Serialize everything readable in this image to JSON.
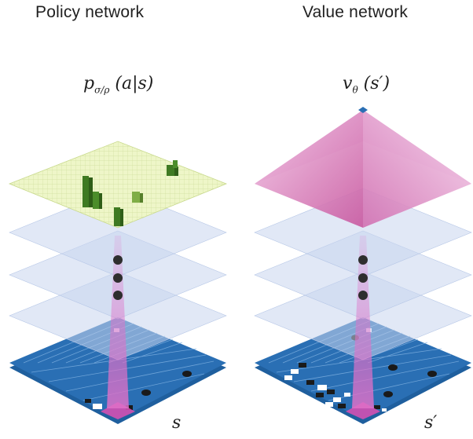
{
  "left": {
    "title": "Policy network",
    "formula_main": "p",
    "formula_sub": "σ/ρ",
    "formula_args": " (a|s)",
    "input_label": "s"
  },
  "right": {
    "title": "Value network",
    "formula_main": "v",
    "formula_sub": "θ",
    "formula_args": " (s′)",
    "input_label": "s′"
  },
  "colors": {
    "board": "#2a6fb4",
    "policy_plane": "#eef6c8",
    "policy_bars": "#3f7a22",
    "hidden_layer": "#c9d6ee",
    "value_pyramid": "#d67ab7",
    "focus_beam": "#e48fcf",
    "dots": "#2e2e2e"
  }
}
